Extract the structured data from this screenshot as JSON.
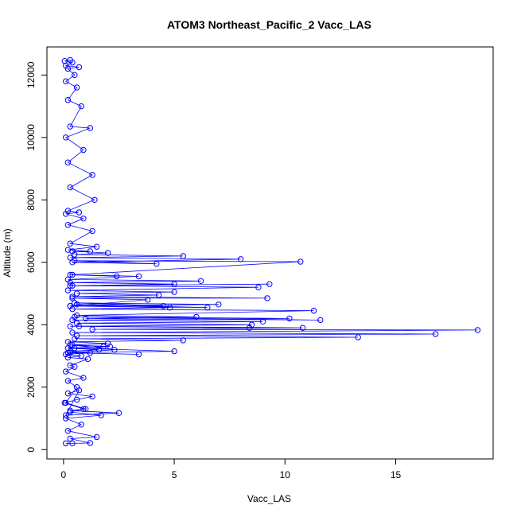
{
  "chart_data": {
    "type": "line",
    "title": "ATOM3 Northeast_Pacific_2 Vacc_LAS",
    "xlabel": "Vacc_LAS",
    "ylabel": "Altitude (m)",
    "xlim": [
      -0.75,
      19.4
    ],
    "ylim": [
      -300,
      12900
    ],
    "xticks": [
      0,
      5,
      10,
      15
    ],
    "yticks": [
      0,
      2000,
      4000,
      6000,
      8000,
      10000,
      12000
    ],
    "grid": false,
    "legend": "none",
    "marker": "open-circle",
    "series_color": "#0000ff",
    "series": [
      {
        "x": [
          0.1,
          0.4,
          1.2,
          0.3,
          1.5,
          0.2,
          0.8,
          0.1,
          1.7,
          0.3,
          0.9,
          0.05,
          0.6,
          1.3,
          0.2,
          0.7,
          0.1,
          2.5,
          0.3,
          1.0,
          0.1,
          0.6,
          0.2,
          0.9,
          0.1,
          0.5,
          0.3,
          1.1,
          0.2,
          0.8,
          0.1,
          1.2,
          0.3,
          1.6,
          0.2,
          2.1,
          0.4,
          2.3,
          0.2,
          3.4,
          0.3,
          5.0,
          0.5,
          1.8,
          0.3,
          2.0,
          0.2,
          5.4,
          0.5,
          13.3,
          0.6,
          16.8,
          0.4,
          18.7,
          1.3,
          10.8,
          0.7,
          8.4,
          0.3,
          8.5,
          0.6,
          9.0,
          0.4,
          10.2,
          0.5,
          11.6,
          1.0,
          6.0,
          0.6,
          11.3,
          0.4,
          4.8,
          0.3,
          7.0,
          0.5,
          4.5,
          0.6,
          6.5,
          0.3,
          3.8,
          0.4,
          9.2,
          0.4,
          4.3,
          0.6,
          5.0,
          0.2,
          8.8,
          0.4,
          9.3,
          0.3,
          5.0,
          0.3,
          6.2,
          0.2,
          3.4,
          0.4,
          2.4,
          0.3,
          10.7,
          0.5,
          4.2,
          0.4,
          8.0,
          0.3,
          5.4,
          0.5,
          2.0,
          0.4,
          1.2,
          0.2,
          1.5,
          0.3,
          1.3,
          0.2,
          0.9,
          0.1,
          0.7,
          0.2,
          1.4,
          0.3,
          1.3,
          0.2,
          0.9,
          0.1,
          1.2,
          0.3,
          0.8,
          0.2,
          0.6,
          0.1,
          0.5,
          0.2,
          0.7,
          0.1,
          0.4,
          0.05,
          0.3
        ],
        "y": [
          200,
          200,
          210,
          350,
          400,
          600,
          800,
          1000,
          1100,
          1200,
          1300,
          1500,
          1600,
          1700,
          1800,
          1900,
          1100,
          1170,
          1250,
          1300,
          1500,
          2000,
          2200,
          2300,
          2500,
          2650,
          2700,
          2900,
          2950,
          3000,
          3050,
          3100,
          3150,
          3200,
          3250,
          3300,
          3350,
          3200,
          3100,
          3050,
          3100,
          3150,
          3250,
          3300,
          3350,
          3400,
          3450,
          3500,
          3550,
          3600,
          3650,
          3700,
          3750,
          3830,
          3850,
          3900,
          3950,
          3900,
          3950,
          4000,
          4050,
          4100,
          4150,
          4200,
          4250,
          4150,
          4200,
          4250,
          4300,
          4450,
          4500,
          4550,
          4600,
          4650,
          4700,
          4600,
          4650,
          4550,
          4600,
          4800,
          4850,
          4850,
          4900,
          4950,
          5000,
          5050,
          5100,
          5200,
          5250,
          5300,
          5250,
          5300,
          5350,
          5400,
          5450,
          5550,
          5600,
          5550,
          5600,
          6020,
          6050,
          5950,
          6000,
          6100,
          6150,
          6200,
          6250,
          6300,
          6350,
          6350,
          6400,
          6500,
          6600,
          7000,
          7200,
          7400,
          7550,
          7600,
          7650,
          8000,
          8400,
          8800,
          9200,
          9600,
          10000,
          10300,
          10350,
          11000,
          11200,
          11600,
          11800,
          12000,
          12200,
          12250,
          12300,
          12400,
          12450,
          12480
        ]
      }
    ]
  }
}
